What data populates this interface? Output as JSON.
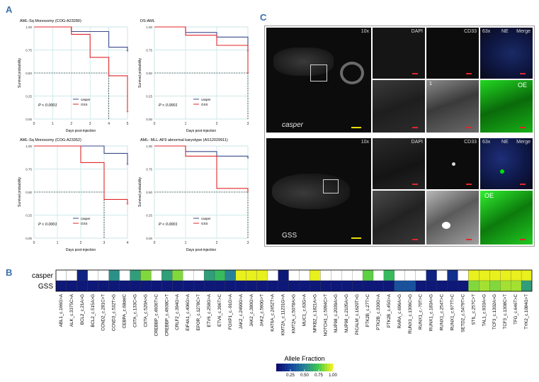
{
  "panel_letters": {
    "a": "A",
    "b": "B",
    "c": "C"
  },
  "colors": {
    "casper": "#3b4a8c",
    "gss": "#e0262b",
    "teal_grid": "#bfe3e3",
    "scale_red": "#e0262b",
    "scale_yellow": "#e8e000",
    "green": "#00c800"
  },
  "chart_data": [
    {
      "type": "line",
      "title": "AML-Sq Monosomy (COG-A23280)",
      "xlabel": "Days post-injection",
      "ylabel": "Survival probability",
      "xlim": [
        0,
        5
      ],
      "ylim": [
        0,
        1
      ],
      "x_ticks": [
        "0",
        "1",
        "2",
        "3",
        "4",
        "5"
      ],
      "y_ticks": [
        "0.00",
        "0.25",
        "0.50",
        "0.75",
        "1.00"
      ],
      "pvalue": "P < 0.0001",
      "legend": [
        "casper",
        "GSS"
      ],
      "series": [
        {
          "name": "casper",
          "steps": [
            [
              0,
              1.0
            ],
            [
              2,
              1.0
            ],
            [
              2,
              0.95
            ],
            [
              4,
              0.95
            ],
            [
              4,
              0.78
            ],
            [
              5,
              0.78
            ],
            [
              5,
              0.74
            ]
          ]
        },
        {
          "name": "GSS",
          "steps": [
            [
              0,
              1.0
            ],
            [
              2,
              1.0
            ],
            [
              2,
              0.92
            ],
            [
              3,
              0.92
            ],
            [
              3,
              0.67
            ],
            [
              4,
              0.67
            ],
            [
              4,
              0.47
            ],
            [
              5,
              0.47
            ],
            [
              5,
              0.08
            ]
          ]
        }
      ],
      "median_x": 4
    },
    {
      "type": "line",
      "title": "DS-AML",
      "xlabel": "Days post-injection",
      "ylabel": "Survival probability",
      "xlim": [
        0,
        3
      ],
      "ylim": [
        0,
        1
      ],
      "x_ticks": [
        "0",
        "1",
        "2",
        "3"
      ],
      "y_ticks": [
        "0.00",
        "0.25",
        "0.50",
        "0.75",
        "1.00"
      ],
      "pvalue": "P < 0.0001",
      "legend": [
        "casper",
        "GSS"
      ],
      "series": [
        {
          "name": "casper",
          "steps": [
            [
              0,
              1.0
            ],
            [
              1,
              1.0
            ],
            [
              1,
              0.94
            ],
            [
              2,
              0.94
            ],
            [
              2,
              0.89
            ],
            [
              3,
              0.89
            ],
            [
              3,
              0.74
            ]
          ]
        },
        {
          "name": "GSS",
          "steps": [
            [
              0,
              1.0
            ],
            [
              1,
              1.0
            ],
            [
              1,
              0.91
            ],
            [
              2,
              0.91
            ],
            [
              2,
              0.8
            ],
            [
              3,
              0.8
            ],
            [
              3,
              0.5
            ]
          ]
        }
      ],
      "median_x": 3
    },
    {
      "type": "line",
      "title": "AML-Sq Monosomy (COG-A23352)",
      "xlabel": "Days post-injection",
      "ylabel": "Survival probability",
      "xlim": [
        0,
        4
      ],
      "ylim": [
        0,
        1
      ],
      "x_ticks": [
        "0",
        "1",
        "2",
        "3",
        "4"
      ],
      "y_ticks": [
        "0.00",
        "0.25",
        "0.50",
        "0.75",
        "1.00"
      ],
      "pvalue": "P < 0.0001",
      "legend": [
        "casper",
        "GSS"
      ],
      "series": [
        {
          "name": "casper",
          "steps": [
            [
              0,
              1.0
            ],
            [
              3,
              1.0
            ],
            [
              3,
              0.92
            ],
            [
              4,
              0.92
            ],
            [
              4,
              0.8
            ]
          ]
        },
        {
          "name": "GSS",
          "steps": [
            [
              0,
              1.0
            ],
            [
              2,
              1.0
            ],
            [
              2,
              0.82
            ],
            [
              3,
              0.82
            ],
            [
              3,
              0.42
            ],
            [
              4,
              0.42
            ],
            [
              4,
              0.37
            ]
          ]
        }
      ],
      "median_x": 3
    },
    {
      "type": "line",
      "title": "AML- MLL-AF9 abnormal karyotype (AS12029911)",
      "xlabel": "Days post-injection",
      "ylabel": "Survival probability",
      "xlim": [
        0,
        3
      ],
      "ylim": [
        0,
        1
      ],
      "x_ticks": [
        "0",
        "1",
        "2",
        "3"
      ],
      "y_ticks": [
        "0.00",
        "0.25",
        "0.50",
        "0.75",
        "1.00"
      ],
      "pvalue": "P < 0.0001",
      "legend": [
        "casper",
        "GSS"
      ],
      "series": [
        {
          "name": "casper",
          "steps": [
            [
              0,
              1.0
            ],
            [
              1,
              1.0
            ],
            [
              1,
              0.94
            ],
            [
              2,
              0.94
            ],
            [
              2,
              0.89
            ],
            [
              3,
              0.89
            ],
            [
              3,
              0.87
            ]
          ]
        },
        {
          "name": "GSS",
          "steps": [
            [
              0,
              1.0
            ],
            [
              1,
              1.0
            ],
            [
              1,
              0.89
            ],
            [
              2,
              0.89
            ],
            [
              2,
              0.54
            ],
            [
              3,
              0.54
            ],
            [
              3,
              0.51
            ]
          ]
        }
      ],
      "median_x": 3
    },
    {
      "type": "heatmap",
      "rows": [
        "casper",
        "GSS"
      ],
      "columns": [
        "ABL1_c.166G>A",
        "ALK_c.3375C>A",
        "BCL2_c.21A>G",
        "BCL2_c.515A>G",
        "CCND2_c.281C>T",
        "CCND3_c.532T>G",
        "CEBPA_c.68delC",
        "CIITA_c.133C>G",
        "CIITA_c.520A>G",
        "CREBBP_c.4936T>C",
        "CREBBP_c.4938C>T",
        "CRLF2_c.394G>A",
        "EIF4A1_c.406G>A",
        "EPOR_c.1278C>T",
        "ETV6_c.258G>A",
        "ETV6_c.396T>C",
        "FOXP1_c.-91G>A",
        "JAK2_c.2490G>A",
        "JAK2_c.380G>A",
        "JAK2_c.590G>T",
        "KAT6A_c.2452T>A",
        "KMT2A_c.11231G>A",
        "KMT2A_c.5078A>G",
        "MUC1_c.63G>A",
        "NFKB2_c.1821A>G",
        "NOTCH1_c.5094C>T",
        "NUP98_c.2039A>G",
        "NUP98_c.2105A>G",
        "PICALM_c.1620T>G",
        "PTK2B_c.27T>C",
        "PTK2B_c.330G>A",
        "PTK2B_c.45G>A",
        "RARA_c.696A>G",
        "RUNX1_c.1306C>G",
        "RUNX1_c.-70T>C",
        "RUNX1_c.183A>G",
        "RUNX1_c.254T>C",
        "RUNX1_c.977T>C",
        "SETD2_c.5479T>C",
        "STIL_c.257C>T",
        "TAL1_c.933A>G",
        "TCF3_c.1302A>G",
        "TCF3_c.1308C>T",
        "TFG_c.646T>C",
        "TYK2_c.1084G>T"
      ],
      "values": [
        [
          null,
          null,
          0.1,
          null,
          null,
          0.55,
          null,
          0.6,
          0.85,
          null,
          0.6,
          0.85,
          null,
          null,
          0.6,
          0.7,
          0.5,
          1.0,
          1.0,
          1.0,
          null,
          0.05,
          null,
          null,
          1.0,
          null,
          null,
          null,
          null,
          0.8,
          null,
          0.7,
          null,
          null,
          null,
          0.1,
          null,
          0.15,
          null,
          1.0,
          1.0,
          1.0,
          1.0,
          1.0,
          1.0
        ],
        [
          0.05,
          0.05,
          0.05,
          0.05,
          0.05,
          0.05,
          0.05,
          0.05,
          0.05,
          0.05,
          0.05,
          0.05,
          0.05,
          0.05,
          0.05,
          0.05,
          0.05,
          0.05,
          0.05,
          0.05,
          0.05,
          0.05,
          0.05,
          0.05,
          0.05,
          0.05,
          0.05,
          0.05,
          0.05,
          0.05,
          0.05,
          0.05,
          0.3,
          0.3,
          0.05,
          0.05,
          0.05,
          0.05,
          0.05,
          0.85,
          0.9,
          0.85,
          0.9,
          0.9,
          0.6
        ]
      ],
      "legend_title": "Allele Fraction",
      "legend_ticks": [
        "0.25",
        "0.50",
        "0.75",
        "1.00"
      ]
    }
  ],
  "microscopy": {
    "casper": {
      "magnification_low": "10x",
      "sample_label": "casper",
      "channels_top": [
        "DAPI",
        "CD33",
        "63x",
        "NE",
        "Merge"
      ],
      "overlay_label": "OE",
      "overlay_number": "1"
    },
    "gss": {
      "magnification_low": "10x",
      "sample_label": "GSS",
      "channels_top": [
        "DAPI",
        "CD33",
        "63x",
        "NE",
        "Merge"
      ],
      "overlay_label": "OE"
    }
  }
}
